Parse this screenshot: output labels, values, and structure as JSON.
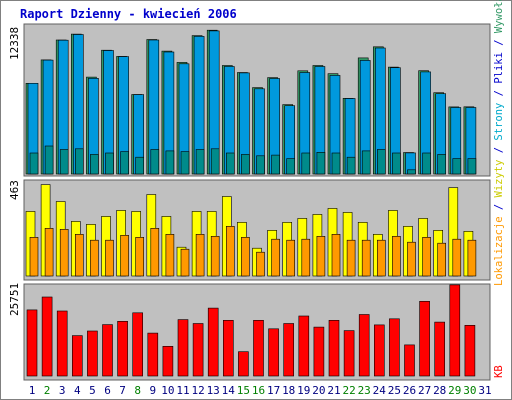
{
  "title": "Raport Dzienny -  kwiecień 2006",
  "colors": {
    "title": "#0000cc",
    "visits": "#00ccff",
    "pages": "#008b8b",
    "files": "#0099dd",
    "hits": "#339966",
    "hosts": "#ffff00",
    "locations": "#ff9900",
    "kb": "#ff0000",
    "panel": "#c0c0c0",
    "weekend_day": "#008000",
    "weekday": "#000080"
  },
  "right_label": {
    "locations": "Lokalizacje",
    "sep1": " / ",
    "visits": "Wizyty",
    "sep2": " / ",
    "pages": "Strony",
    "sep3": " / ",
    "files": "Pliki",
    "sep4": " / ",
    "hits": "Wywołania",
    "kb": "KB"
  },
  "chart_data": [
    {
      "type": "bar",
      "name": "hits-files-pages",
      "ymax_label": "12338",
      "ylim": [
        0,
        12338
      ],
      "categories": [
        "1",
        "2",
        "3",
        "4",
        "5",
        "6",
        "7",
        "8",
        "9",
        "10",
        "11",
        "12",
        "13",
        "14",
        "15",
        "16",
        "17",
        "18",
        "19",
        "20",
        "21",
        "22",
        "23",
        "24",
        "25",
        "26",
        "27",
        "28",
        "29",
        "30",
        "31"
      ],
      "series": [
        {
          "name": "Wywołania",
          "values": [
            7770,
            9780,
            11480,
            11990,
            8300,
            10610,
            10080,
            6810,
            11520,
            10530,
            9560,
            11860,
            12320,
            9300,
            8700,
            7400,
            8260,
            5950,
            8840,
            9300,
            8590,
            6490,
            9950,
            10900,
            9160,
            1840,
            8850,
            6970,
            5750,
            5760,
            0
          ]
        },
        {
          "name": "Pliki",
          "values": [
            7770,
            9760,
            11460,
            11950,
            8200,
            10580,
            10060,
            6800,
            11480,
            10450,
            9440,
            11790,
            12260,
            9210,
            8660,
            7300,
            8180,
            5850,
            8700,
            9210,
            8450,
            6470,
            9730,
            10800,
            9110,
            1810,
            8750,
            6880,
            5700,
            5700,
            0
          ]
        },
        {
          "name": "Strony",
          "values": [
            300,
            400,
            350,
            360,
            280,
            300,
            320,
            240,
            350,
            330,
            320,
            350,
            360,
            300,
            280,
            260,
            270,
            220,
            300,
            310,
            300,
            240,
            330,
            350,
            300,
            60,
            300,
            280,
            220,
            220,
            0
          ]
        }
      ]
    },
    {
      "type": "bar",
      "name": "visits-locations",
      "ymax_label": "463",
      "ylim": [
        0,
        463
      ],
      "categories": [
        "1",
        "2",
        "3",
        "4",
        "5",
        "6",
        "7",
        "8",
        "9",
        "10",
        "11",
        "12",
        "13",
        "14",
        "15",
        "16",
        "17",
        "18",
        "19",
        "20",
        "21",
        "22",
        "23",
        "24",
        "25",
        "26",
        "27",
        "28",
        "29",
        "30",
        "31"
      ],
      "series": [
        {
          "name": "Wizyty",
          "values": [
            325,
            460,
            375,
            275,
            260,
            300,
            330,
            325,
            410,
            300,
            145,
            325,
            325,
            400,
            270,
            140,
            230,
            270,
            290,
            310,
            340,
            320,
            270,
            210,
            330,
            250,
            290,
            230,
            445,
            225,
            0
          ]
        },
        {
          "name": "Lokalizacje",
          "values": [
            195,
            240,
            235,
            210,
            180,
            180,
            205,
            195,
            240,
            210,
            135,
            210,
            200,
            250,
            195,
            120,
            185,
            180,
            185,
            200,
            210,
            180,
            180,
            180,
            200,
            170,
            195,
            165,
            185,
            180,
            0
          ]
        }
      ]
    },
    {
      "type": "bar",
      "name": "kb",
      "ymax_label": "25751",
      "ylim": [
        0,
        25751
      ],
      "categories": [
        "1",
        "2",
        "3",
        "4",
        "5",
        "6",
        "7",
        "8",
        "9",
        "10",
        "11",
        "12",
        "13",
        "14",
        "15",
        "16",
        "17",
        "18",
        "19",
        "20",
        "21",
        "22",
        "23",
        "24",
        "25",
        "26",
        "27",
        "28",
        "29",
        "30",
        "31"
      ],
      "series": [
        {
          "name": "KB",
          "values": [
            18500,
            22100,
            18200,
            11300,
            12600,
            14400,
            15300,
            17700,
            12000,
            8300,
            15800,
            14700,
            19000,
            15600,
            6800,
            15600,
            13200,
            14700,
            16800,
            13700,
            15600,
            12700,
            17200,
            14300,
            16000,
            8700,
            20900,
            15100,
            25500,
            14200,
            0
          ]
        }
      ]
    }
  ],
  "days": [
    {
      "label": "1",
      "weekend": false
    },
    {
      "label": "2",
      "weekend": true
    },
    {
      "label": "3",
      "weekend": false
    },
    {
      "label": "4",
      "weekend": false
    },
    {
      "label": "5",
      "weekend": false
    },
    {
      "label": "6",
      "weekend": false
    },
    {
      "label": "7",
      "weekend": false
    },
    {
      "label": "8",
      "weekend": true
    },
    {
      "label": "9",
      "weekend": false
    },
    {
      "label": "10",
      "weekend": false
    },
    {
      "label": "11",
      "weekend": false
    },
    {
      "label": "12",
      "weekend": false
    },
    {
      "label": "13",
      "weekend": false
    },
    {
      "label": "14",
      "weekend": false
    },
    {
      "label": "15",
      "weekend": true
    },
    {
      "label": "16",
      "weekend": true
    },
    {
      "label": "17",
      "weekend": false
    },
    {
      "label": "18",
      "weekend": false
    },
    {
      "label": "19",
      "weekend": false
    },
    {
      "label": "20",
      "weekend": false
    },
    {
      "label": "21",
      "weekend": false
    },
    {
      "label": "22",
      "weekend": true
    },
    {
      "label": "23",
      "weekend": true
    },
    {
      "label": "24",
      "weekend": false
    },
    {
      "label": "25",
      "weekend": false
    },
    {
      "label": "26",
      "weekend": false
    },
    {
      "label": "27",
      "weekend": false
    },
    {
      "label": "28",
      "weekend": false
    },
    {
      "label": "29",
      "weekend": true
    },
    {
      "label": "30",
      "weekend": true
    },
    {
      "label": "31",
      "weekend": false
    }
  ]
}
